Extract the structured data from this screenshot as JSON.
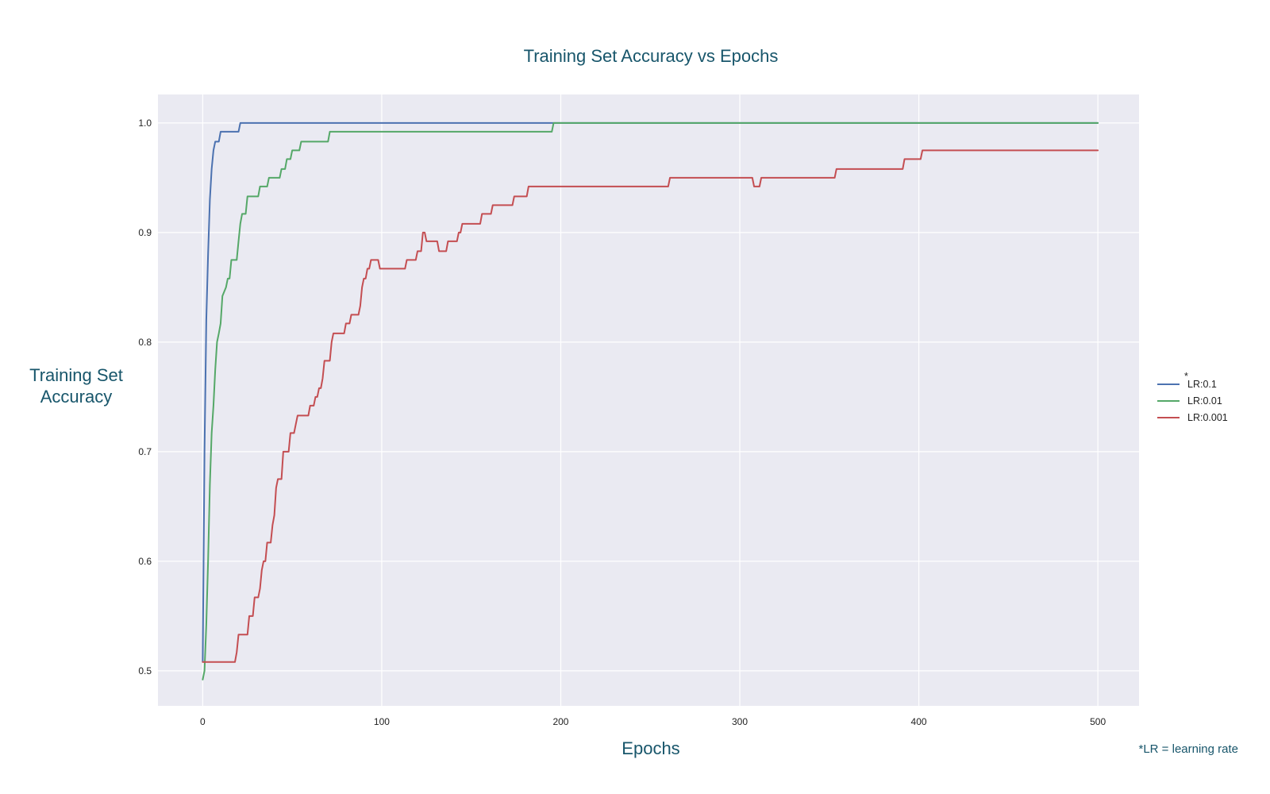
{
  "chart_data": {
    "type": "line",
    "title": "Training Set Accuracy vs Epochs",
    "xlabel": "Epochs",
    "ylabel": [
      "Training Set",
      "Accuracy"
    ],
    "xlim": [
      -25,
      523
    ],
    "ylim": [
      0.468,
      1.026
    ],
    "xticks": [
      0,
      100,
      200,
      300,
      400,
      500
    ],
    "yticks": [
      0.5,
      0.6,
      0.7,
      0.8,
      0.9,
      1.0
    ],
    "ytick_labels": [
      "0.5",
      "0.6",
      "0.7",
      "0.8",
      "0.9",
      "1.0"
    ],
    "grid": true,
    "legend_position": "right",
    "legend_marker": "*",
    "footnote": "*LR = learning rate",
    "series": [
      {
        "name": "LR:0.1",
        "color": "#4c72b0",
        "points": [
          [
            0,
            0.508
          ],
          [
            1,
            0.7
          ],
          [
            2,
            0.82
          ],
          [
            3,
            0.88
          ],
          [
            4,
            0.93
          ],
          [
            5,
            0.958
          ],
          [
            6,
            0.975
          ],
          [
            7,
            0.983
          ],
          [
            9,
            0.983
          ],
          [
            10,
            0.992
          ],
          [
            20,
            0.992
          ],
          [
            21,
            1.0
          ],
          [
            500,
            1.0
          ]
        ]
      },
      {
        "name": "LR:0.01",
        "color": "#55a868",
        "points": [
          [
            0,
            0.492
          ],
          [
            1,
            0.5
          ],
          [
            2,
            0.542
          ],
          [
            3,
            0.6
          ],
          [
            4,
            0.67
          ],
          [
            5,
            0.717
          ],
          [
            6,
            0.742
          ],
          [
            7,
            0.775
          ],
          [
            8,
            0.8
          ],
          [
            9,
            0.808
          ],
          [
            10,
            0.817
          ],
          [
            11,
            0.842
          ],
          [
            13,
            0.85
          ],
          [
            14,
            0.858
          ],
          [
            15,
            0.858
          ],
          [
            16,
            0.875
          ],
          [
            19,
            0.875
          ],
          [
            20,
            0.892
          ],
          [
            21,
            0.908
          ],
          [
            22,
            0.917
          ],
          [
            24,
            0.917
          ],
          [
            25,
            0.933
          ],
          [
            31,
            0.933
          ],
          [
            32,
            0.942
          ],
          [
            36,
            0.942
          ],
          [
            37,
            0.95
          ],
          [
            43,
            0.95
          ],
          [
            44,
            0.958
          ],
          [
            46,
            0.958
          ],
          [
            47,
            0.967
          ],
          [
            49,
            0.967
          ],
          [
            50,
            0.975
          ],
          [
            54,
            0.975
          ],
          [
            55,
            0.983
          ],
          [
            70,
            0.983
          ],
          [
            71,
            0.992
          ],
          [
            195,
            0.992
          ],
          [
            196,
            1.0
          ],
          [
            500,
            1.0
          ]
        ]
      },
      {
        "name": "LR:0.001",
        "color": "#c44e52",
        "points": [
          [
            0,
            0.508
          ],
          [
            18,
            0.508
          ],
          [
            19,
            0.517
          ],
          [
            20,
            0.533
          ],
          [
            25,
            0.533
          ],
          [
            26,
            0.55
          ],
          [
            28,
            0.55
          ],
          [
            29,
            0.567
          ],
          [
            31,
            0.567
          ],
          [
            32,
            0.575
          ],
          [
            33,
            0.592
          ],
          [
            34,
            0.6
          ],
          [
            35,
            0.6
          ],
          [
            36,
            0.617
          ],
          [
            38,
            0.617
          ],
          [
            39,
            0.633
          ],
          [
            40,
            0.642
          ],
          [
            41,
            0.667
          ],
          [
            42,
            0.675
          ],
          [
            44,
            0.675
          ],
          [
            45,
            0.7
          ],
          [
            48,
            0.7
          ],
          [
            49,
            0.717
          ],
          [
            51,
            0.717
          ],
          [
            52,
            0.725
          ],
          [
            53,
            0.733
          ],
          [
            59,
            0.733
          ],
          [
            60,
            0.742
          ],
          [
            62,
            0.742
          ],
          [
            63,
            0.75
          ],
          [
            64,
            0.75
          ],
          [
            65,
            0.758
          ],
          [
            66,
            0.758
          ],
          [
            67,
            0.767
          ],
          [
            68,
            0.783
          ],
          [
            71,
            0.783
          ],
          [
            72,
            0.8
          ],
          [
            73,
            0.808
          ],
          [
            79,
            0.808
          ],
          [
            80,
            0.817
          ],
          [
            82,
            0.817
          ],
          [
            83,
            0.825
          ],
          [
            87,
            0.825
          ],
          [
            88,
            0.833
          ],
          [
            89,
            0.85
          ],
          [
            90,
            0.858
          ],
          [
            91,
            0.858
          ],
          [
            92,
            0.867
          ],
          [
            93,
            0.867
          ],
          [
            94,
            0.875
          ],
          [
            98,
            0.875
          ],
          [
            99,
            0.867
          ],
          [
            113,
            0.867
          ],
          [
            114,
            0.875
          ],
          [
            119,
            0.875
          ],
          [
            120,
            0.883
          ],
          [
            122,
            0.883
          ],
          [
            123,
            0.9
          ],
          [
            124,
            0.9
          ],
          [
            125,
            0.892
          ],
          [
            131,
            0.892
          ],
          [
            132,
            0.883
          ],
          [
            136,
            0.883
          ],
          [
            137,
            0.892
          ],
          [
            142,
            0.892
          ],
          [
            143,
            0.9
          ],
          [
            144,
            0.9
          ],
          [
            145,
            0.908
          ],
          [
            155,
            0.908
          ],
          [
            156,
            0.917
          ],
          [
            161,
            0.917
          ],
          [
            162,
            0.925
          ],
          [
            173,
            0.925
          ],
          [
            174,
            0.933
          ],
          [
            181,
            0.933
          ],
          [
            182,
            0.942
          ],
          [
            260,
            0.942
          ],
          [
            261,
            0.95
          ],
          [
            307,
            0.95
          ],
          [
            308,
            0.942
          ],
          [
            311,
            0.942
          ],
          [
            312,
            0.95
          ],
          [
            353,
            0.95
          ],
          [
            354,
            0.958
          ],
          [
            391,
            0.958
          ],
          [
            392,
            0.967
          ],
          [
            401,
            0.967
          ],
          [
            402,
            0.975
          ],
          [
            500,
            0.975
          ]
        ]
      }
    ]
  }
}
